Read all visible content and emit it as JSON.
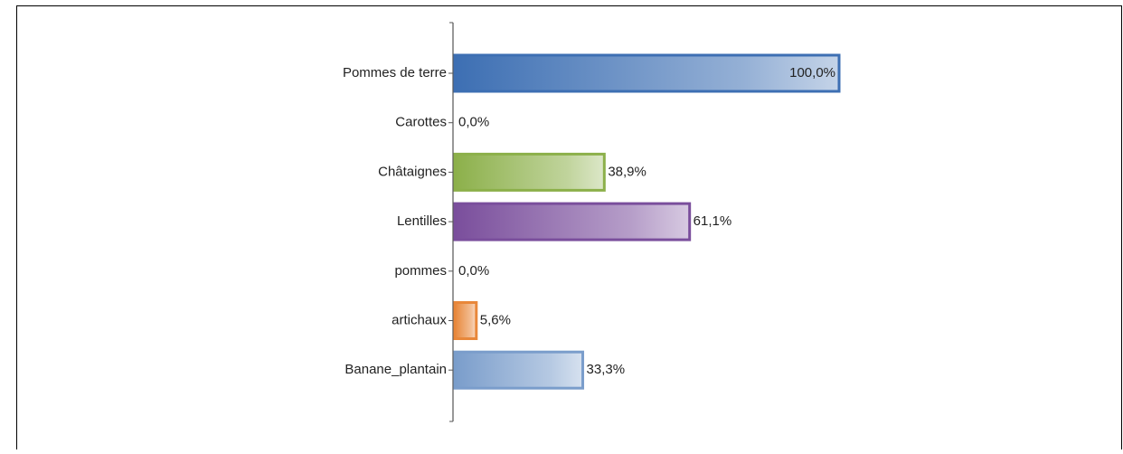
{
  "chart_data": {
    "type": "barh",
    "categories": [
      "Pommes de terre",
      "Carottes",
      "Châtaignes",
      "Lentilles",
      "pommes",
      "artichaux",
      "Banane_plantain"
    ],
    "values": [
      100.0,
      0.0,
      38.9,
      61.1,
      0.0,
      5.6,
      33.3
    ],
    "value_labels": [
      "100,0%",
      "0,0%",
      "38,9%",
      "61,1%",
      "0,0%",
      "5,6%",
      "33,3%"
    ],
    "colors": [
      "#3d6fb3",
      "#4f81bd",
      "#8cb04a",
      "#7a4e9c",
      "#c0504d",
      "#e8873a",
      "#7a9dcb"
    ]
  }
}
